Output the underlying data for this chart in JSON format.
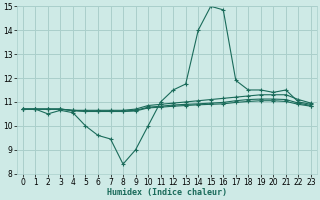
{
  "xlabel": "Humidex (Indice chaleur)",
  "xlim": [
    -0.5,
    23.5
  ],
  "ylim": [
    8,
    15
  ],
  "yticks": [
    8,
    9,
    10,
    11,
    12,
    13,
    14,
    15
  ],
  "xticks": [
    0,
    1,
    2,
    3,
    4,
    5,
    6,
    7,
    8,
    9,
    10,
    11,
    12,
    13,
    14,
    15,
    16,
    17,
    18,
    19,
    20,
    21,
    22,
    23
  ],
  "bg_color": "#ceeae6",
  "grid_color": "#aacfcb",
  "line_color": "#1a6b5a",
  "lines": [
    {
      "x": [
        0,
        1,
        2,
        3,
        4,
        5,
        6,
        7,
        8,
        9,
        10,
        11,
        12,
        13,
        14,
        15,
        16,
        17,
        18,
        19,
        20,
        21,
        22,
        23
      ],
      "y": [
        10.7,
        10.7,
        10.5,
        10.65,
        10.55,
        10.0,
        9.6,
        9.45,
        8.4,
        9.0,
        10.0,
        11.0,
        11.5,
        11.75,
        14.0,
        15.0,
        14.85,
        11.9,
        11.5,
        11.5,
        11.4,
        11.5,
        11.0,
        10.9
      ]
    },
    {
      "x": [
        0,
        1,
        2,
        3,
        4,
        5,
        6,
        7,
        8,
        9,
        10,
        11,
        12,
        13,
        14,
        15,
        16,
        17,
        18,
        19,
        20,
        21,
        22,
        23
      ],
      "y": [
        10.7,
        10.7,
        10.7,
        10.7,
        10.65,
        10.65,
        10.65,
        10.65,
        10.65,
        10.7,
        10.85,
        10.9,
        10.95,
        11.0,
        11.05,
        11.1,
        11.15,
        11.2,
        11.25,
        11.3,
        11.3,
        11.3,
        11.1,
        10.95
      ]
    },
    {
      "x": [
        0,
        1,
        2,
        3,
        4,
        5,
        6,
        7,
        8,
        9,
        10,
        11,
        12,
        13,
        14,
        15,
        16,
        17,
        18,
        19,
        20,
        21,
        22,
        23
      ],
      "y": [
        10.7,
        10.7,
        10.7,
        10.7,
        10.65,
        10.62,
        10.62,
        10.62,
        10.62,
        10.65,
        10.78,
        10.82,
        10.87,
        10.9,
        10.92,
        10.95,
        10.98,
        11.05,
        11.1,
        11.12,
        11.12,
        11.1,
        10.95,
        10.85
      ]
    },
    {
      "x": [
        0,
        1,
        2,
        3,
        4,
        5,
        6,
        7,
        8,
        9,
        10,
        11,
        12,
        13,
        14,
        15,
        16,
        17,
        18,
        19,
        20,
        21,
        22,
        23
      ],
      "y": [
        10.7,
        10.7,
        10.7,
        10.7,
        10.63,
        10.6,
        10.6,
        10.6,
        10.6,
        10.62,
        10.75,
        10.78,
        10.82,
        10.85,
        10.88,
        10.9,
        10.92,
        10.98,
        11.02,
        11.05,
        11.05,
        11.02,
        10.9,
        10.82
      ]
    }
  ]
}
